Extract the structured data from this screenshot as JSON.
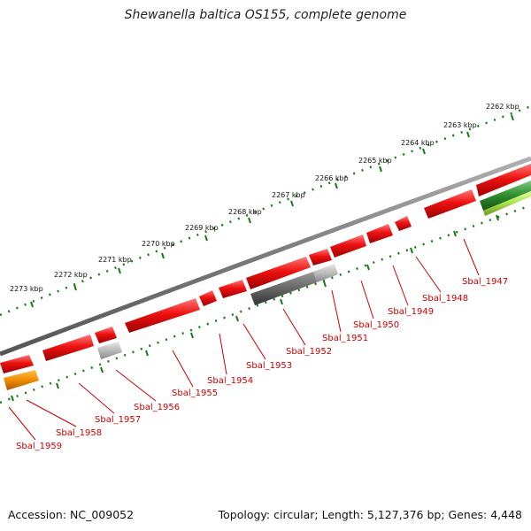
{
  "title": "Shewanella baltica OS155, complete genome",
  "footer": {
    "accession": "Accession: NC_009052",
    "summary": "Topology: circular; Length: 5,127,376 bp; Genes: 4,448"
  },
  "colors": {
    "gene_red": "#ee1111",
    "gene_gray": "#666666",
    "gene_light_gray": "#bbbbbb",
    "gene_orange": "#f08c00",
    "gene_green": "#2e8b2e",
    "gene_lime": "#a8e04a",
    "backbone": "#808080",
    "tick_green": "#1a7a1a",
    "label_red": "#cc0000"
  },
  "kbp_labels": [
    "2262 kbp",
    "2263 kbp",
    "2264 kbp",
    "2265 kbp",
    "2266 kbp",
    "2267 kbp",
    "2268 kbp",
    "2269 kbp",
    "2270 kbp",
    "2271 kbp",
    "2272 kbp",
    "2273 kbp"
  ],
  "gene_labels": [
    "Sbal_1947",
    "Sbal_1948",
    "Sbal_1949",
    "Sbal_1950",
    "Sbal_1951",
    "Sbal_1952",
    "Sbal_1953",
    "Sbal_1954",
    "Sbal_1955",
    "Sbal_1956",
    "Sbal_1957",
    "Sbal_1958",
    "Sbal_1959"
  ]
}
